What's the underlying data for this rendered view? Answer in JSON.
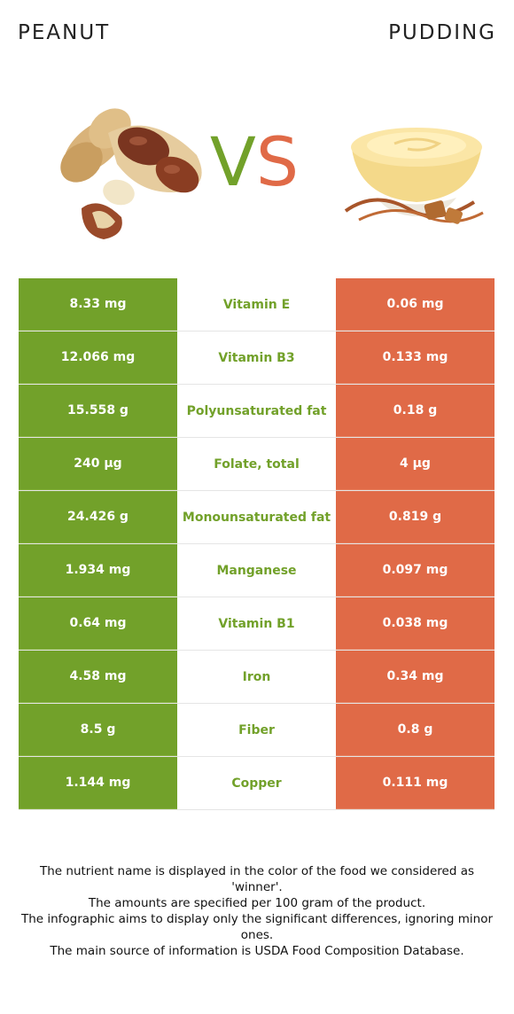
{
  "header": {
    "left_food": "PEANUT",
    "right_food": "PUDDING",
    "vs_v": "V",
    "vs_s": "S"
  },
  "colors": {
    "winner_left": "#72a12a",
    "winner_right": "#e06a47"
  },
  "rows": [
    {
      "left": "8.33 mg",
      "nutrient": "Vitamin E",
      "right": "0.06 mg"
    },
    {
      "left": "12.066 mg",
      "nutrient": "Vitamin B3",
      "right": "0.133 mg"
    },
    {
      "left": "15.558 g",
      "nutrient": "Polyunsaturated fat",
      "right": "0.18 g"
    },
    {
      "left": "240 µg",
      "nutrient": "Folate, total",
      "right": "4 µg"
    },
    {
      "left": "24.426 g",
      "nutrient": "Monounsaturated fat",
      "right": "0.819 g"
    },
    {
      "left": "1.934 mg",
      "nutrient": "Manganese",
      "right": "0.097 mg"
    },
    {
      "left": "0.64 mg",
      "nutrient": "Vitamin B1",
      "right": "0.038 mg"
    },
    {
      "left": "4.58 mg",
      "nutrient": "Iron",
      "right": "0.34 mg"
    },
    {
      "left": "8.5 g",
      "nutrient": "Fiber",
      "right": "0.8 g"
    },
    {
      "left": "1.144 mg",
      "nutrient": "Copper",
      "right": "0.111 mg"
    }
  ],
  "footer": {
    "line1": "The nutrient name is displayed in the color of the food we considered as 'winner'.",
    "line2": "The amounts are specified per 100 gram of the product.",
    "line3": "The infographic aims to display only the significant differences, ignoring minor ones.",
    "line4": "The main source of information is USDA Food Composition Database."
  }
}
